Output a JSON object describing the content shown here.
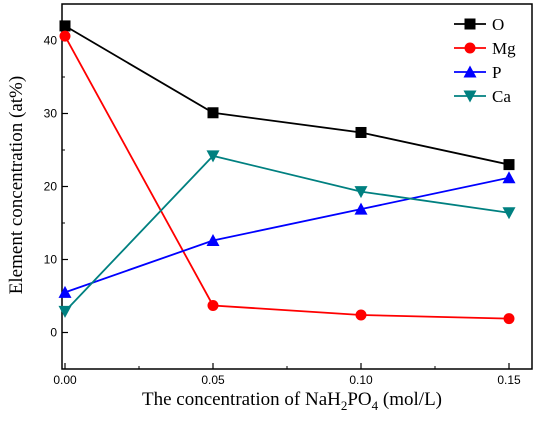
{
  "chart_data": {
    "type": "line",
    "title": "",
    "xlabel_parts": [
      "The concentration of NaH",
      "2",
      "PO",
      "4",
      " (mol/L)"
    ],
    "ylabel": "Element concentration (at%)",
    "xlim": [
      0,
      0.15
    ],
    "ylim": [
      -5,
      45
    ],
    "x_ticks": [
      "0.00",
      "0.05",
      "0.10",
      "0.15"
    ],
    "y_ticks": [
      "0",
      "10",
      "20",
      "30",
      "40"
    ],
    "x": [
      0,
      0.05,
      0.1,
      0.15
    ],
    "legend_position": "top-right",
    "grid": false,
    "series": [
      {
        "name": "O",
        "values": [
          42.0,
          30.1,
          27.4,
          23.0
        ],
        "color": "#000000",
        "marker": "square"
      },
      {
        "name": "Mg",
        "values": [
          40.6,
          3.7,
          2.4,
          1.9
        ],
        "color": "#ff0000",
        "marker": "circle"
      },
      {
        "name": "P",
        "values": [
          5.5,
          12.6,
          16.9,
          21.2
        ],
        "color": "#0000ff",
        "marker": "triangle-up"
      },
      {
        "name": "Ca",
        "values": [
          2.9,
          24.2,
          19.3,
          16.4
        ],
        "color": "#008080",
        "marker": "triangle-down"
      }
    ]
  }
}
